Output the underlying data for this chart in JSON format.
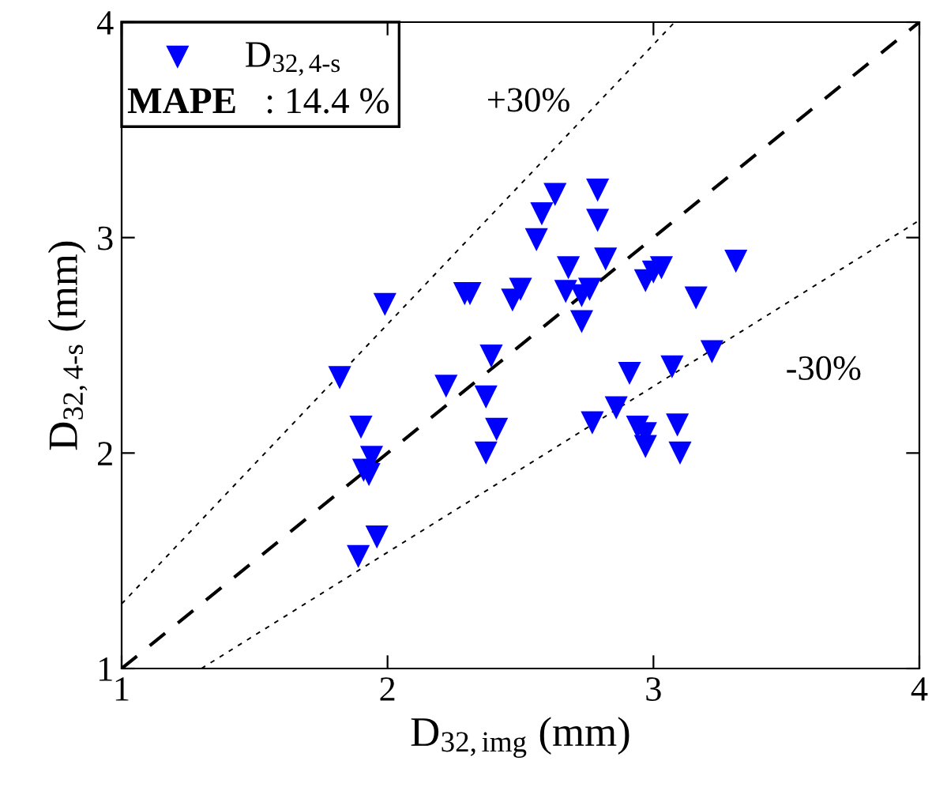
{
  "chart_data": {
    "type": "scatter",
    "xlabel": "D$_{32,img}$ (mm)",
    "ylabel": "D$_{32,4-s}$ (mm)",
    "xlim": [
      1,
      4
    ],
    "ylim": [
      1,
      4
    ],
    "xticks": [
      1,
      2,
      3,
      4
    ],
    "yticks": [
      1,
      2,
      3,
      4
    ],
    "grid": false,
    "legend": "top left",
    "series": [
      {
        "name": "D$_{32,4-s}$",
        "color": "#0000ff",
        "marker": "triangle",
        "x": [
          1.99,
          1.82,
          1.9,
          1.94,
          1.91,
          1.93,
          1.96,
          1.89,
          2.22,
          2.29,
          2.31,
          2.39,
          2.37,
          2.41,
          2.37,
          2.5,
          2.47,
          2.63,
          2.58,
          2.56,
          2.79,
          2.79,
          2.82,
          2.67,
          2.68,
          2.76,
          2.73,
          2.73,
          2.77,
          2.91,
          2.86,
          2.94,
          2.97,
          2.97,
          2.97,
          3.0,
          3.03,
          3.07,
          3.09,
          3.1,
          3.16,
          3.22,
          3.31
        ],
        "values": [
          2.69,
          2.35,
          2.12,
          1.98,
          1.92,
          1.9,
          1.61,
          1.52,
          2.31,
          2.74,
          2.74,
          2.45,
          2.26,
          2.11,
          2.0,
          2.76,
          2.71,
          3.2,
          3.11,
          2.99,
          3.22,
          3.08,
          2.9,
          2.75,
          2.86,
          2.76,
          2.73,
          2.61,
          2.14,
          2.37,
          2.21,
          2.12,
          2.09,
          2.03,
          2.8,
          2.84,
          2.86,
          2.4,
          2.13,
          2.0,
          2.72,
          2.47,
          2.89
        ]
      },
      {
        "type": "line",
        "color": "#000000",
        "marker": "none",
        "line_style": "dashed",
        "x": [
          1,
          4
        ],
        "values": [
          1,
          4
        ]
      },
      {
        "type": "line",
        "color": "#000000",
        "marker": "none",
        "line_style": "dotted",
        "x": [
          1,
          3.08
        ],
        "values": [
          1.3,
          4
        ]
      },
      {
        "type": "line",
        "color": "#000000",
        "marker": "none",
        "line_style": "dotted",
        "x": [
          1.3,
          4
        ],
        "values": [
          1,
          3.08
        ]
      }
    ],
    "annotations": [
      "+30%",
      "-30%",
      "MAPE   : 14.4 %"
    ]
  }
}
